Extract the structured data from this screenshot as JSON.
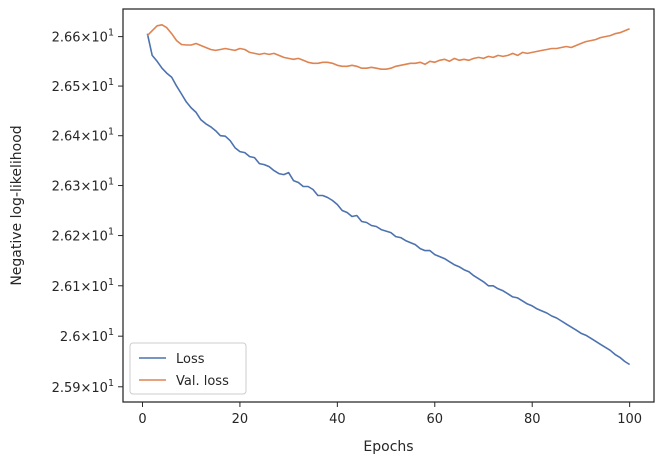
{
  "chart_data": {
    "type": "line",
    "xlabel": "Epochs",
    "ylabel": "Negative log-likelihood",
    "xlim": [
      -4,
      105
    ],
    "ylim": [
      25.87,
      26.656
    ],
    "yscale": "log",
    "grid": false,
    "legend_position": "lower-left",
    "x_ticks": [
      {
        "value": 0,
        "label": "0"
      },
      {
        "value": 20,
        "label": "20"
      },
      {
        "value": 40,
        "label": "40"
      },
      {
        "value": 60,
        "label": "60"
      },
      {
        "value": 80,
        "label": "80"
      },
      {
        "value": 100,
        "label": "100"
      }
    ],
    "y_ticks": [
      {
        "value": 25.9,
        "mantissa": "2.59",
        "base": "10",
        "exp": "1"
      },
      {
        "value": 26.0,
        "mantissa": "2.6",
        "base": "10",
        "exp": "1"
      },
      {
        "value": 26.1,
        "mantissa": "2.61",
        "base": "10",
        "exp": "1"
      },
      {
        "value": 26.2,
        "mantissa": "2.62",
        "base": "10",
        "exp": "1"
      },
      {
        "value": 26.3,
        "mantissa": "2.63",
        "base": "10",
        "exp": "1"
      },
      {
        "value": 26.4,
        "mantissa": "2.64",
        "base": "10",
        "exp": "1"
      },
      {
        "value": 26.5,
        "mantissa": "2.65",
        "base": "10",
        "exp": "1"
      },
      {
        "value": 26.6,
        "mantissa": "2.66",
        "base": "10",
        "exp": "1"
      }
    ],
    "x": [
      1,
      2,
      3,
      4,
      5,
      6,
      7,
      8,
      9,
      10,
      11,
      12,
      13,
      14,
      15,
      16,
      17,
      18,
      19,
      20,
      21,
      22,
      23,
      24,
      25,
      26,
      27,
      28,
      29,
      30,
      31,
      32,
      33,
      34,
      35,
      36,
      37,
      38,
      39,
      40,
      41,
      42,
      43,
      44,
      45,
      46,
      47,
      48,
      49,
      50,
      51,
      52,
      53,
      54,
      55,
      56,
      57,
      58,
      59,
      60,
      61,
      62,
      63,
      64,
      65,
      66,
      67,
      68,
      69,
      70,
      71,
      72,
      73,
      74,
      75,
      76,
      77,
      78,
      79,
      80,
      81,
      82,
      83,
      84,
      85,
      86,
      87,
      88,
      89,
      90,
      91,
      92,
      93,
      94,
      95,
      96,
      97,
      98,
      99,
      100
    ],
    "series": [
      {
        "name": "Loss",
        "color": "#4c72b0",
        "values": [
          26.606,
          26.562,
          26.55,
          26.536,
          26.526,
          26.518,
          26.5,
          26.484,
          26.468,
          26.456,
          26.447,
          26.432,
          26.424,
          26.418,
          26.41,
          26.4,
          26.399,
          26.39,
          26.376,
          26.368,
          26.366,
          26.358,
          26.356,
          26.344,
          26.342,
          26.338,
          26.33,
          26.324,
          26.322,
          26.326,
          26.31,
          26.306,
          26.298,
          26.298,
          26.292,
          26.28,
          26.28,
          26.276,
          26.27,
          26.262,
          26.25,
          26.246,
          26.238,
          26.24,
          26.228,
          26.226,
          26.22,
          26.218,
          26.212,
          26.209,
          26.206,
          26.198,
          26.196,
          26.19,
          26.186,
          26.182,
          26.174,
          26.17,
          26.17,
          26.162,
          26.158,
          26.154,
          26.148,
          26.142,
          26.138,
          26.132,
          26.128,
          26.12,
          26.114,
          26.108,
          26.1,
          26.1,
          26.094,
          26.09,
          26.084,
          26.078,
          26.076,
          26.07,
          26.064,
          26.06,
          26.054,
          26.05,
          26.046,
          26.04,
          26.036,
          26.03,
          26.024,
          26.018,
          26.012,
          26.006,
          26.002,
          25.996,
          25.99,
          25.984,
          25.978,
          25.972,
          25.964,
          25.958,
          25.95,
          25.944
        ]
      },
      {
        "name": "Val. loss",
        "color": "#dd8452",
        "values": [
          26.602,
          26.612,
          26.622,
          26.624,
          26.618,
          26.606,
          26.592,
          26.584,
          26.583,
          26.583,
          26.586,
          26.582,
          26.578,
          26.574,
          26.572,
          26.574,
          26.576,
          26.574,
          26.572,
          26.576,
          26.574,
          26.568,
          26.566,
          26.564,
          26.566,
          26.564,
          26.566,
          26.562,
          26.558,
          26.556,
          26.554,
          26.556,
          26.552,
          26.548,
          26.546,
          26.546,
          26.548,
          26.548,
          26.546,
          26.542,
          26.54,
          26.54,
          26.542,
          26.54,
          26.536,
          26.536,
          26.538,
          26.536,
          26.534,
          26.534,
          26.536,
          26.54,
          26.542,
          26.544,
          26.546,
          26.546,
          26.548,
          26.544,
          26.55,
          26.548,
          26.552,
          26.554,
          26.55,
          26.556,
          26.552,
          26.554,
          26.552,
          26.556,
          26.558,
          26.556,
          26.56,
          26.558,
          26.562,
          26.56,
          26.562,
          26.566,
          26.562,
          26.568,
          26.566,
          26.568,
          26.57,
          26.572,
          26.574,
          26.576,
          26.576,
          26.578,
          26.58,
          26.578,
          26.582,
          26.586,
          26.59,
          26.592,
          26.594,
          26.598,
          26.6,
          26.602,
          26.606,
          26.608,
          26.612,
          26.616
        ]
      }
    ]
  }
}
